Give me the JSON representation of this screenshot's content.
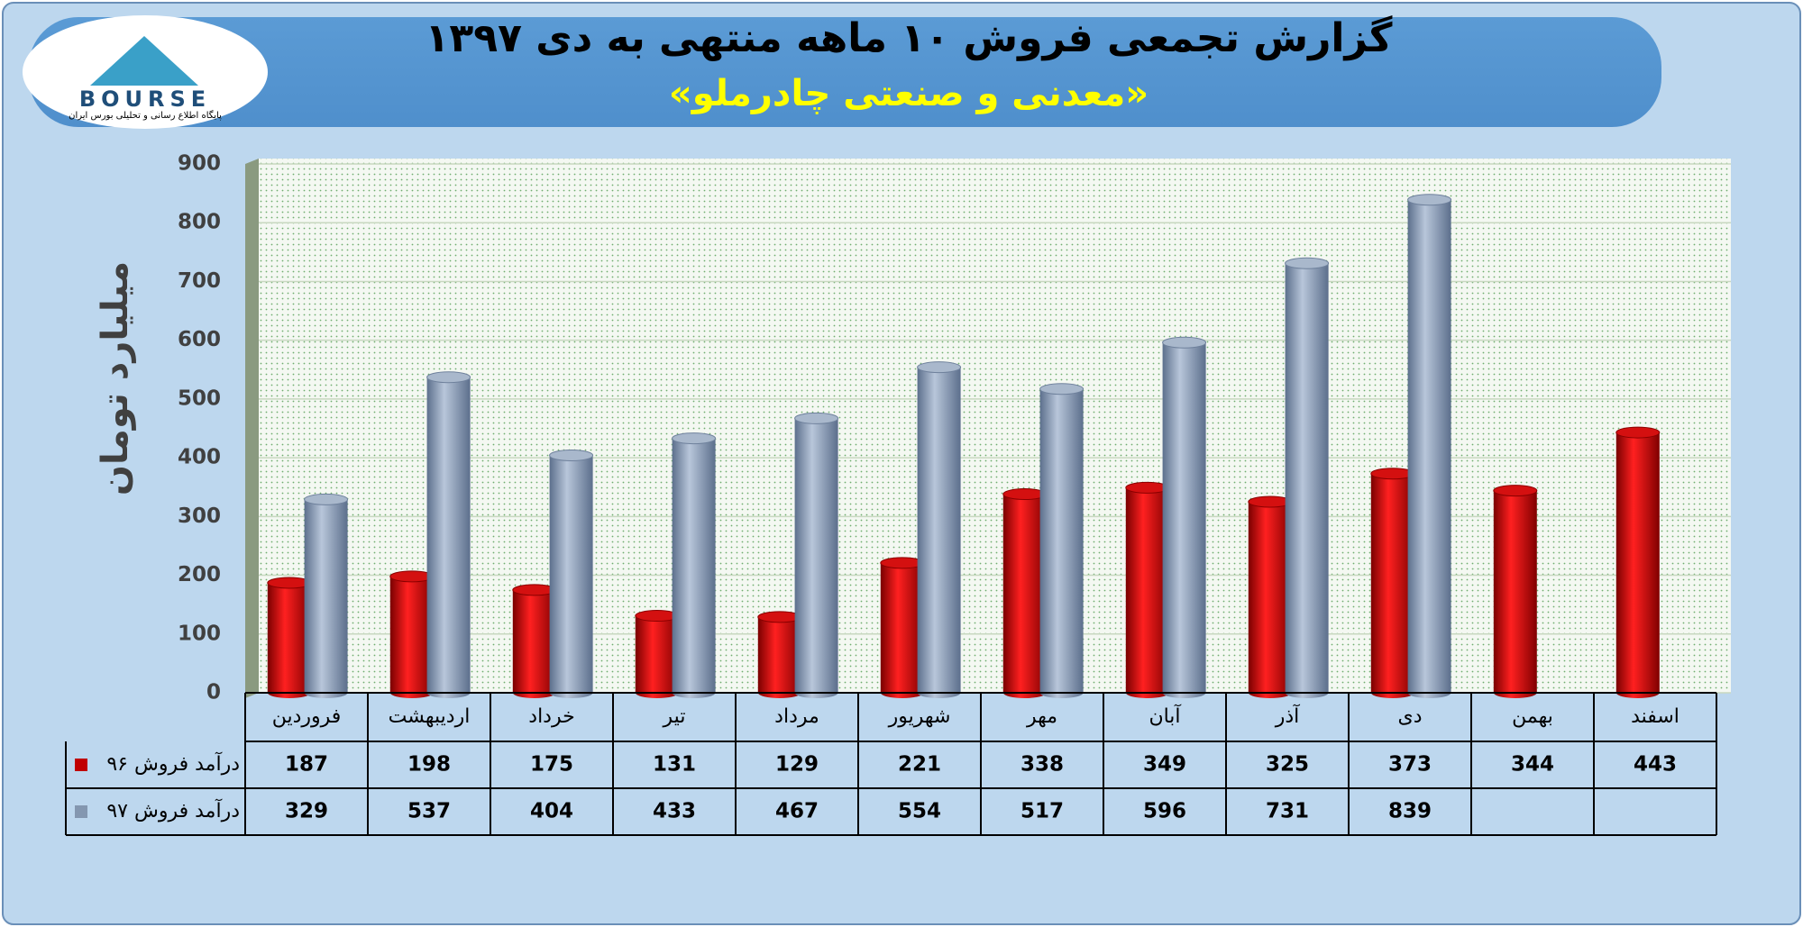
{
  "chart_data": {
    "type": "bar",
    "title": "گزارش تجمعی فروش ۱۰ ماهه منتهی به دی ۱۳۹۷",
    "subtitle": "«معدنی و صنعتی چادرملو»",
    "y_label": "میلیارد تومان",
    "logo": {
      "name": "BOURSE",
      "caption": "پایگاه اطلاع رسانی و تحلیلی بورس ایران"
    },
    "categories": [
      "فروردین",
      "اردیبهشت",
      "خرداد",
      "تیر",
      "مرداد",
      "شهریور",
      "مهر",
      "آبان",
      "آذر",
      "دی",
      "بهمن",
      "اسفند"
    ],
    "series": [
      {
        "name": "درآمد فروش ۹۶",
        "color": "#c00000",
        "values": [
          187,
          198,
          175,
          131,
          129,
          221,
          338,
          349,
          325,
          373,
          344,
          443
        ]
      },
      {
        "name": "درآمد فروش ۹۷",
        "color": "#8497b0",
        "values": [
          329,
          537,
          404,
          433,
          467,
          554,
          517,
          596,
          731,
          839,
          null,
          null
        ]
      }
    ],
    "ylim": [
      0,
      900
    ],
    "yticks": [
      0,
      100,
      200,
      300,
      400,
      500,
      600,
      700,
      800,
      900
    ],
    "grid": true
  }
}
